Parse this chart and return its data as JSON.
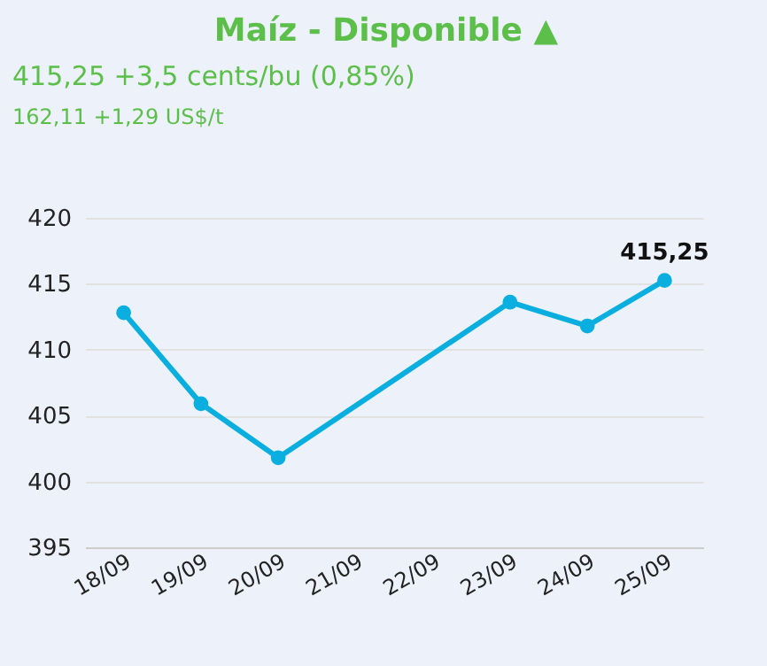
{
  "chart_data": {
    "type": "line",
    "title": "Maíz - Disponible ▲",
    "subtitle": "415,25 +3,5 cents/bu (0,85%)",
    "annotations": [
      "162,11 +1,29 US$/t"
    ],
    "categories": [
      "18/09",
      "19/09",
      "20/09",
      "21/09",
      "22/09",
      "23/09",
      "24/09",
      "25/09"
    ],
    "series": [
      {
        "color": "#0aafe0",
        "values": [
          412.8,
          405.9,
          401.8,
          null,
          null,
          413.6,
          411.8,
          415.25
        ],
        "value_labels": [
          null,
          null,
          null,
          null,
          null,
          null,
          null,
          "415,25"
        ]
      }
    ],
    "ylim": [
      395,
      420
    ],
    "yticks": [
      395,
      400,
      405,
      410,
      415,
      420
    ],
    "grid": "y",
    "marker": "circle"
  }
}
